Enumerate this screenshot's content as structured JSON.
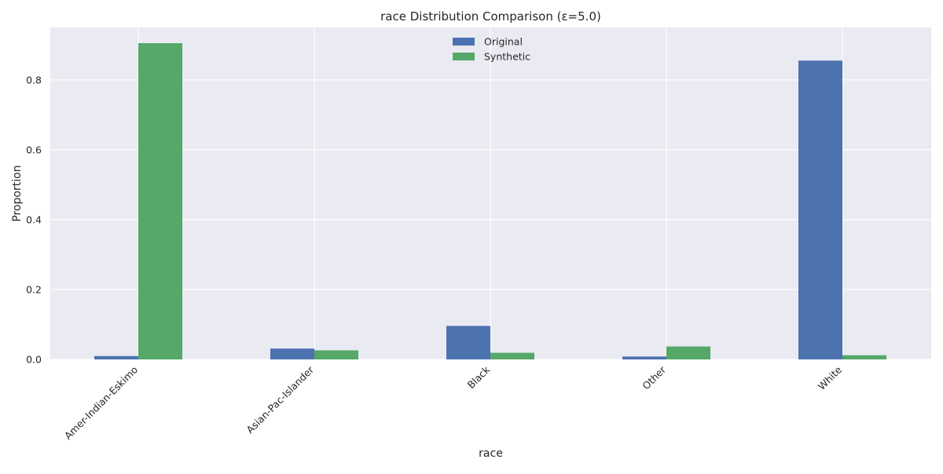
{
  "chart_data": {
    "type": "bar",
    "title": "race Distribution Comparison (ε=5.0)",
    "xlabel": "race",
    "ylabel": "Proportion",
    "categories": [
      "Amer-Indian-Eskimo",
      "Asian-Pac-Islander",
      "Black",
      "Other",
      "White"
    ],
    "series": [
      {
        "name": "Original",
        "values": [
          0.0096,
          0.0311,
          0.0959,
          0.0083,
          0.8551
        ]
      },
      {
        "name": "Synthetic",
        "values": [
          0.905,
          0.026,
          0.019,
          0.037,
          0.012
        ]
      }
    ],
    "ylim": [
      0,
      0.95
    ],
    "yticks": [
      0.0,
      0.2,
      0.4,
      0.6,
      0.8
    ],
    "ytick_labels": [
      "0.0",
      "0.2",
      "0.4",
      "0.6",
      "0.8"
    ],
    "grid": true,
    "legend_position": "top-center",
    "colors": {
      "series": [
        "#4c72b0",
        "#55a868"
      ],
      "plot_background": "#eaeaf2",
      "grid": "#ffffff",
      "text": "#262626"
    }
  }
}
